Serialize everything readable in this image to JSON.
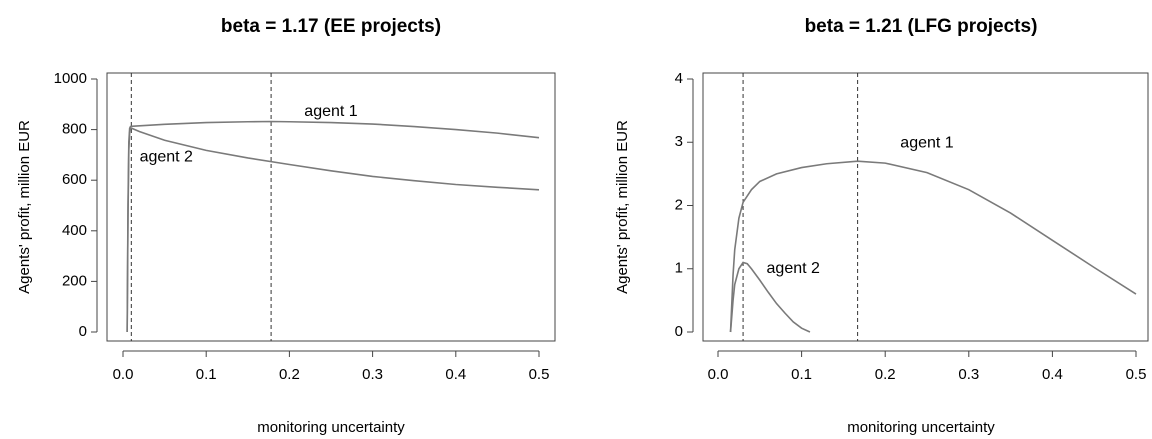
{
  "chart_data": [
    {
      "type": "line",
      "title": "beta = 1.17 (EE projects)",
      "xlabel": "monitoring uncertainty",
      "ylabel": "Agents' profit, million EUR",
      "xlim": [
        0.0,
        0.5
      ],
      "ylim": [
        0,
        1000
      ],
      "x_ticks": [
        0.0,
        0.1,
        0.2,
        0.3,
        0.4,
        0.5
      ],
      "x_tick_labels": [
        "0.0",
        "0.1",
        "0.2",
        "0.3",
        "0.4",
        "0.5"
      ],
      "y_ticks": [
        0,
        200,
        400,
        600,
        800,
        1000
      ],
      "y_tick_labels": [
        "0",
        "200",
        "400",
        "600",
        "800",
        "1000"
      ],
      "grid": false,
      "vlines": [
        0.01,
        0.178
      ],
      "series": [
        {
          "x": [
            0.005,
            0.006,
            0.007,
            0.008,
            0.009,
            0.01,
            0.02,
            0.05,
            0.1,
            0.15,
            0.178,
            0.2,
            0.25,
            0.3,
            0.35,
            0.4,
            0.45,
            0.5
          ],
          "values": [
            0,
            500,
            750,
            805,
            812,
            813,
            815,
            821,
            828,
            831,
            832,
            831,
            828,
            822,
            812,
            800,
            786,
            768
          ]
        },
        {
          "x": [
            0.005,
            0.006,
            0.007,
            0.008,
            0.009,
            0.01,
            0.02,
            0.05,
            0.1,
            0.15,
            0.2,
            0.25,
            0.3,
            0.35,
            0.4,
            0.45,
            0.5
          ],
          "values": [
            0,
            450,
            720,
            790,
            805,
            806,
            792,
            758,
            718,
            688,
            662,
            637,
            615,
            598,
            583,
            572,
            562
          ]
        }
      ],
      "annotations": [
        {
          "text": "agent 1",
          "x": 0.25,
          "y": 870
        },
        {
          "text": "agent 2",
          "x": 0.052,
          "y": 690
        }
      ]
    },
    {
      "type": "line",
      "title": "beta = 1.21 (LFG projects)",
      "xlabel": "monitoring uncertainty",
      "ylabel": "Agents' profit, million EUR",
      "xlim": [
        0.0,
        0.5
      ],
      "ylim": [
        0,
        4
      ],
      "x_ticks": [
        0.0,
        0.1,
        0.2,
        0.3,
        0.4,
        0.5
      ],
      "x_tick_labels": [
        "0.0",
        "0.1",
        "0.2",
        "0.3",
        "0.4",
        "0.5"
      ],
      "y_ticks": [
        0,
        1,
        2,
        3,
        4
      ],
      "y_tick_labels": [
        "0",
        "1",
        "2",
        "3",
        "4"
      ],
      "grid": false,
      "vlines": [
        0.03,
        0.167
      ],
      "series": [
        {
          "x": [
            0.015,
            0.018,
            0.02,
            0.025,
            0.03,
            0.04,
            0.05,
            0.07,
            0.1,
            0.13,
            0.167,
            0.2,
            0.25,
            0.3,
            0.35,
            0.4,
            0.45,
            0.5
          ],
          "values": [
            0,
            0.9,
            1.3,
            1.8,
            2.05,
            2.25,
            2.38,
            2.5,
            2.6,
            2.66,
            2.7,
            2.67,
            2.52,
            2.25,
            1.88,
            1.45,
            1.02,
            0.6
          ]
        },
        {
          "x": [
            0.015,
            0.018,
            0.02,
            0.025,
            0.03,
            0.035,
            0.04,
            0.05,
            0.06,
            0.07,
            0.08,
            0.09,
            0.1,
            0.11
          ],
          "values": [
            0,
            0.5,
            0.75,
            1.0,
            1.1,
            1.08,
            1.0,
            0.82,
            0.63,
            0.45,
            0.3,
            0.16,
            0.06,
            0
          ]
        }
      ],
      "annotations": [
        {
          "text": "agent 1",
          "x": 0.25,
          "y": 2.98
        },
        {
          "text": "agent 2",
          "x": 0.09,
          "y": 1.0
        }
      ]
    }
  ]
}
